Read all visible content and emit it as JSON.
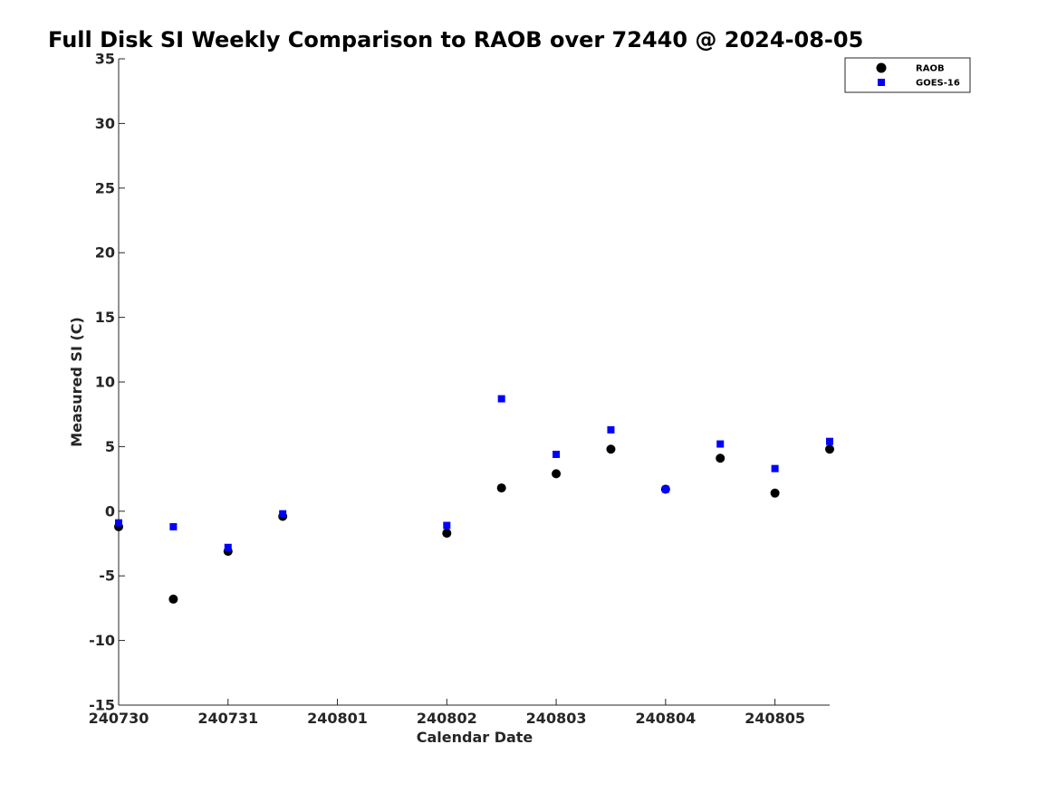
{
  "chart_data": {
    "type": "scatter",
    "title": "Full Disk SI Weekly Comparison to RAOB over 72440 @ 2024-08-05",
    "xlabel": "Calendar Date",
    "ylabel": "Measured SI (C)",
    "xlim": [
      "2024-07-30",
      "2024-08-05 12:00"
    ],
    "ylim": [
      -15,
      35
    ],
    "x_tick_labels": [
      "240730",
      "240731",
      "240801",
      "240802",
      "240803",
      "240804",
      "240805"
    ],
    "y_tick_labels": [
      "35",
      "30",
      "25",
      "20",
      "15",
      "10",
      "5",
      "0",
      "-5",
      "-10",
      "-15"
    ],
    "grid": false,
    "legend_position": "top-right",
    "series": [
      {
        "name": "RAOB",
        "marker": "circle",
        "color": "#000000",
        "points": [
          {
            "x": "2024-07-30 00:00",
            "y": -1.2
          },
          {
            "x": "2024-07-30 12:00",
            "y": -6.8
          },
          {
            "x": "2024-07-31 00:00",
            "y": -3.1
          },
          {
            "x": "2024-07-31 12:00",
            "y": -0.4
          },
          {
            "x": "2024-08-02 00:00",
            "y": -1.7
          },
          {
            "x": "2024-08-02 12:00",
            "y": 1.8
          },
          {
            "x": "2024-08-03 00:00",
            "y": 2.9
          },
          {
            "x": "2024-08-03 12:00",
            "y": 4.8
          },
          {
            "x": "2024-08-04 00:00",
            "y": 1.7
          },
          {
            "x": "2024-08-04 12:00",
            "y": 4.1
          },
          {
            "x": "2024-08-05 00:00",
            "y": 1.4
          },
          {
            "x": "2024-08-05 12:00",
            "y": 4.8
          }
        ]
      },
      {
        "name": "GOES-16",
        "marker": "square",
        "color": "#0000ff",
        "points": [
          {
            "x": "2024-07-30 00:00",
            "y": -0.9
          },
          {
            "x": "2024-07-30 12:00",
            "y": -1.2
          },
          {
            "x": "2024-07-31 00:00",
            "y": -2.8
          },
          {
            "x": "2024-07-31 12:00",
            "y": -0.2
          },
          {
            "x": "2024-08-02 00:00",
            "y": -1.1
          },
          {
            "x": "2024-08-02 12:00",
            "y": 8.7
          },
          {
            "x": "2024-08-03 00:00",
            "y": 4.4
          },
          {
            "x": "2024-08-03 12:00",
            "y": 6.3
          },
          {
            "x": "2024-08-04 00:00",
            "y": 1.7
          },
          {
            "x": "2024-08-04 12:00",
            "y": 5.2
          },
          {
            "x": "2024-08-05 00:00",
            "y": 3.3
          },
          {
            "x": "2024-08-05 12:00",
            "y": 5.4
          }
        ]
      }
    ]
  }
}
